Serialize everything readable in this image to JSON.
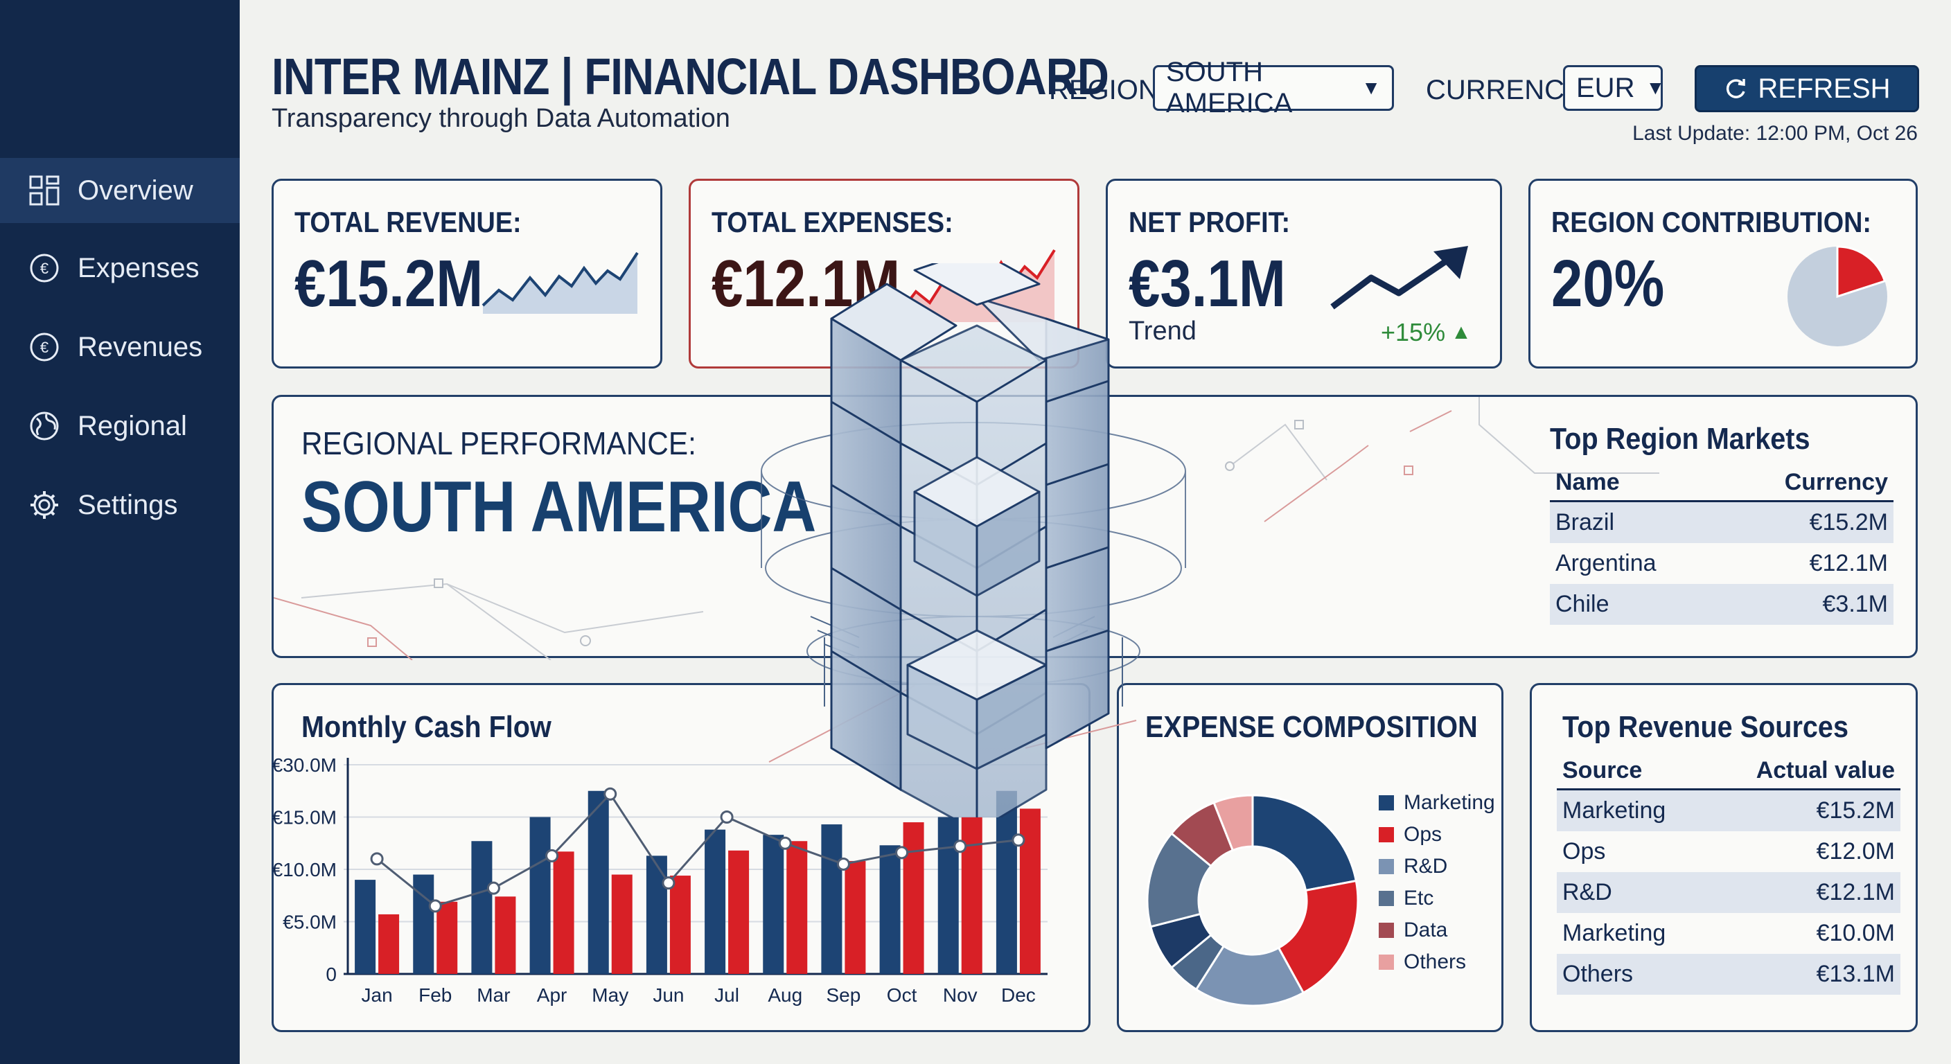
{
  "header": {
    "title": "INTER MAINZ | FINANCIAL DASHBOARD",
    "subtitle": "Transparency through Data Automation",
    "region_label": "REGION:",
    "region_value": "SOUTH AMERICA",
    "currency_label": "CURRENCY:",
    "currency_value": "EUR",
    "refresh_label": "REFRESH",
    "last_update": "Last Update: 12:00 PM, Oct 26"
  },
  "sidebar": {
    "items": [
      {
        "label": "Overview",
        "icon": "grid-icon"
      },
      {
        "label": "Expenses",
        "icon": "euro-icon"
      },
      {
        "label": "Revenues",
        "icon": "euro-icon"
      },
      {
        "label": "Regional",
        "icon": "globe-icon"
      },
      {
        "label": "Settings",
        "icon": "gear-icon"
      }
    ]
  },
  "kpis": {
    "revenue": {
      "label": "TOTAL REVENUE:",
      "value": "€15.2M"
    },
    "expenses": {
      "label": "TOTAL EXPENSES:",
      "value": "€12.1M"
    },
    "profit": {
      "label": "NET PROFIT:",
      "value": "€3.1M",
      "trend_label": "Trend",
      "trend_change": "+15%"
    },
    "contribution": {
      "label": "REGION CONTRIBUTION:",
      "value": "20%",
      "fraction": 0.2
    }
  },
  "regional": {
    "label": "REGIONAL PERFORMANCE:",
    "region": "SOUTH AMERICA",
    "markets_title": "Top Region Markets",
    "columns": [
      "Name",
      "Currency"
    ],
    "rows": [
      [
        "Brazil",
        "€15.2M"
      ],
      [
        "Argentina",
        "€12.1M"
      ],
      [
        "Chile",
        "€3.1M"
      ]
    ]
  },
  "cashflow": {
    "title": "Monthly Cash Flow"
  },
  "expense_comp": {
    "title": "EXPENSE COMPOSITION"
  },
  "revenue_sources": {
    "title": "Top Revenue Sources",
    "columns": [
      "Source",
      "Actual value"
    ],
    "rows": [
      [
        "Marketing",
        "€15.2M"
      ],
      [
        "Ops",
        "€12.0M"
      ],
      [
        "R&D",
        "€12.1M"
      ],
      [
        "Marketing",
        "€10.0M"
      ],
      [
        "Others",
        "€13.1M"
      ]
    ]
  },
  "colors": {
    "navy": "#12284a",
    "blue_bar": "#1d4474",
    "red_bar": "#d82026",
    "up_green": "#2e8b3a"
  },
  "chart_data": [
    {
      "type": "bar",
      "title": "Monthly Cash Flow",
      "categories": [
        "Jan",
        "Feb",
        "Mar",
        "Apr",
        "May",
        "Jun",
        "Jul",
        "Aug",
        "Sep",
        "Oct",
        "Nov",
        "Dec"
      ],
      "y_ticks": [
        "0",
        "€5.0M",
        "€10.0M",
        "€15.0M",
        "€30.0M"
      ],
      "ylim": [
        0,
        20
      ],
      "series": [
        {
          "values": [
            9,
            9.5,
            12.7,
            15,
            17.5,
            11.3,
            13.8,
            13.3,
            14.3,
            12.3,
            15,
            17.5
          ]
        },
        {
          "values": [
            5.7,
            6.9,
            7.4,
            11.7,
            9.5,
            9.4,
            11.8,
            12.7,
            10.8,
            14.5,
            15,
            15.8
          ]
        },
        {
          "values": [
            11,
            6.5,
            8.2,
            11.3,
            17.2,
            8.7,
            15,
            12.5,
            10.5,
            11.6,
            12.2,
            12.8
          ]
        }
      ],
      "grid": true
    },
    {
      "type": "pie",
      "title": "EXPENSE COMPOSITION",
      "donut": true,
      "labels": [
        "Marketing",
        "Ops",
        "R&D",
        "Etc",
        "Data",
        "Others"
      ],
      "colors": [
        "#1d4474",
        "#d82026",
        "#7b93b3",
        "#58718f",
        "#a24a52",
        "#e8a0a0"
      ],
      "values": [
        22,
        20,
        17,
        15,
        8,
        6
      ],
      "extra_slices": [
        {
          "value": 7,
          "color": "#1d3a66"
        },
        {
          "value": 5,
          "color": "#4b6788"
        }
      ]
    }
  ]
}
